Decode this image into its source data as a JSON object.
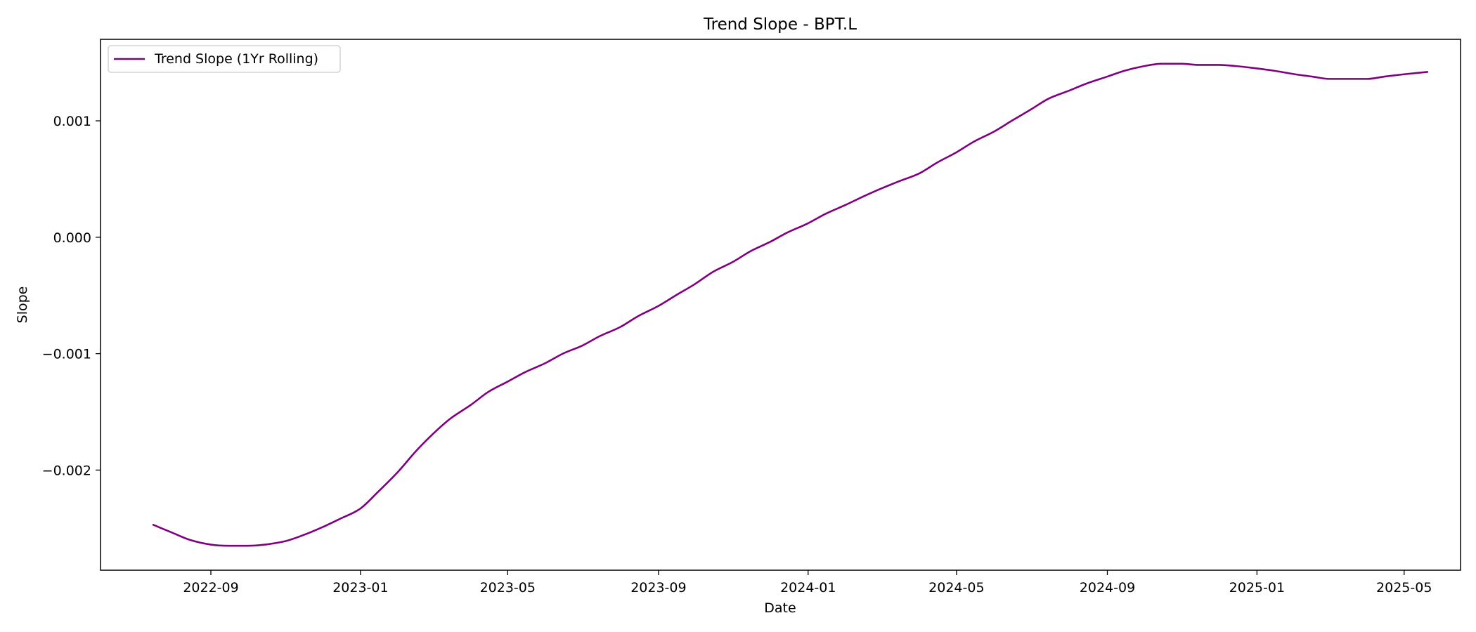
{
  "chart_data": {
    "type": "line",
    "title": "Trend Slope - BPT.L",
    "xlabel": "Date",
    "ylabel": "Slope",
    "x_ticks": [
      "2022-09",
      "2023-01",
      "2023-05",
      "2023-09",
      "2024-01",
      "2024-05",
      "2024-09",
      "2025-01",
      "2025-05"
    ],
    "y_ticks": [
      "−0.002",
      "−0.001",
      "0.000",
      "0.001"
    ],
    "y_tick_values": [
      -0.002,
      -0.001,
      0.0,
      0.001
    ],
    "xlim": [
      "2022-06-03",
      "2025-06-16"
    ],
    "ylim": [
      -0.00286,
      0.0017
    ],
    "grid": false,
    "legend": {
      "position": "top-left",
      "entries": [
        "Trend Slope (1Yr Rolling)"
      ]
    },
    "series": [
      {
        "name": "Trend Slope (1Yr Rolling)",
        "color": "#800080",
        "x": [
          "2022-07-16",
          "2022-08-01",
          "2022-08-15",
          "2022-09-01",
          "2022-09-15",
          "2022-10-01",
          "2022-10-15",
          "2022-11-01",
          "2022-11-15",
          "2022-12-01",
          "2022-12-15",
          "2023-01-01",
          "2023-01-15",
          "2023-02-01",
          "2023-02-15",
          "2023-03-01",
          "2023-03-15",
          "2023-04-01",
          "2023-04-15",
          "2023-05-01",
          "2023-05-15",
          "2023-06-01",
          "2023-06-15",
          "2023-07-01",
          "2023-07-15",
          "2023-08-01",
          "2023-08-15",
          "2023-09-01",
          "2023-09-15",
          "2023-10-01",
          "2023-10-15",
          "2023-11-01",
          "2023-11-15",
          "2023-12-01",
          "2023-12-15",
          "2024-01-01",
          "2024-01-15",
          "2024-02-01",
          "2024-02-15",
          "2024-03-01",
          "2024-03-15",
          "2024-04-01",
          "2024-04-15",
          "2024-05-01",
          "2024-05-15",
          "2024-06-01",
          "2024-06-15",
          "2024-07-01",
          "2024-07-15",
          "2024-08-01",
          "2024-08-15",
          "2024-09-01",
          "2024-09-15",
          "2024-10-01",
          "2024-10-15",
          "2024-11-01",
          "2024-11-15",
          "2024-12-01",
          "2024-12-15",
          "2025-01-01",
          "2025-01-15",
          "2025-02-01",
          "2025-02-15",
          "2025-03-01",
          "2025-03-15",
          "2025-04-01",
          "2025-04-15",
          "2025-05-01",
          "2025-05-20"
        ],
        "values": [
          -0.00247,
          -0.00254,
          -0.0026,
          -0.00264,
          -0.00265,
          -0.00265,
          -0.00264,
          -0.00261,
          -0.00256,
          -0.00249,
          -0.00242,
          -0.00233,
          -0.00219,
          -0.00201,
          -0.00184,
          -0.00169,
          -0.00156,
          -0.00144,
          -0.00133,
          -0.00124,
          -0.00116,
          -0.00108,
          -0.001,
          -0.00093,
          -0.00085,
          -0.00077,
          -0.00068,
          -0.00059,
          -0.0005,
          -0.0004,
          -0.0003,
          -0.00021,
          -0.00012,
          -4e-05,
          4e-05,
          0.00012,
          0.0002,
          0.00028,
          0.00035,
          0.00042,
          0.00048,
          0.00055,
          0.00064,
          0.00073,
          0.00082,
          0.00091,
          0.001,
          0.0011,
          0.00119,
          0.00126,
          0.00132,
          0.00138,
          0.00143,
          0.00147,
          0.00149,
          0.00149,
          0.00148,
          0.00148,
          0.00147,
          0.00145,
          0.00143,
          0.0014,
          0.00138,
          0.00136,
          0.00136,
          0.00136,
          0.00138,
          0.0014,
          0.00142
        ]
      }
    ]
  }
}
